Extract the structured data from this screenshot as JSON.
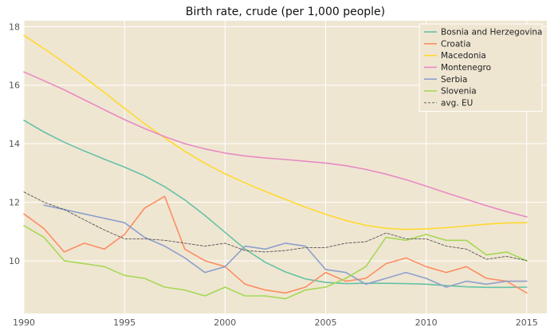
{
  "chart_data": {
    "type": "line",
    "title": "Birth rate, crude (per 1,000 people)",
    "xlabel": "",
    "ylabel": "",
    "xlim": [
      1990,
      2016
    ],
    "ylim": [
      8.2,
      18.2
    ],
    "x_ticks": [
      1990,
      1995,
      2000,
      2005,
      2010,
      2015
    ],
    "y_ticks": [
      10,
      12,
      14,
      16,
      18
    ],
    "grid": true,
    "legend_position": "top-right",
    "background": "#efe6d2",
    "series": [
      {
        "name": "Bosnia and Herzegovina",
        "color": "#66c2a5",
        "dash": "solid",
        "x": [
          1990,
          1991,
          1992,
          1993,
          1994,
          1995,
          1996,
          1997,
          1998,
          1999,
          2000,
          2001,
          2002,
          2003,
          2004,
          2005,
          2006,
          2007,
          2008,
          2009,
          2010,
          2011,
          2012,
          2013,
          2014,
          2015
        ],
        "y": [
          14.8,
          14.4,
          14.05,
          13.75,
          13.47,
          13.2,
          12.9,
          12.53,
          12.08,
          11.55,
          10.97,
          10.4,
          9.95,
          9.62,
          9.38,
          9.26,
          9.22,
          9.23,
          9.23,
          9.22,
          9.2,
          9.15,
          9.11,
          9.09,
          9.09,
          9.1
        ]
      },
      {
        "name": "Croatia",
        "color": "#fc8d62",
        "dash": "solid",
        "x": [
          1990,
          1991,
          1992,
          1993,
          1994,
          1995,
          1996,
          1997,
          1998,
          1999,
          2000,
          2001,
          2002,
          2003,
          2004,
          2005,
          2006,
          2007,
          2008,
          2009,
          2010,
          2011,
          2012,
          2013,
          2014,
          2015
        ],
        "y": [
          11.6,
          11.1,
          10.3,
          10.6,
          10.4,
          10.9,
          11.8,
          12.2,
          10.4,
          10.0,
          9.8,
          9.2,
          9.0,
          8.9,
          9.1,
          9.6,
          9.3,
          9.4,
          9.9,
          10.1,
          9.8,
          9.6,
          9.8,
          9.4,
          9.3,
          8.9
        ]
      },
      {
        "name": "Macedonia",
        "color": "#ffd92f",
        "dash": "solid",
        "x": [
          1990,
          1991,
          1992,
          1993,
          1994,
          1995,
          1996,
          1997,
          1998,
          1999,
          2000,
          2001,
          2002,
          2003,
          2004,
          2005,
          2006,
          2007,
          2008,
          2009,
          2010,
          2011,
          2012,
          2013,
          2014,
          2015
        ],
        "y": [
          17.7,
          17.25,
          16.77,
          16.27,
          15.75,
          15.21,
          14.68,
          14.2,
          13.74,
          13.33,
          12.97,
          12.66,
          12.37,
          12.1,
          11.83,
          11.59,
          11.38,
          11.21,
          11.11,
          11.07,
          11.09,
          11.13,
          11.19,
          11.25,
          11.29,
          11.3
        ]
      },
      {
        "name": "Montenegro",
        "color": "#e78ac3",
        "dash": "solid",
        "x": [
          1990,
          1991,
          1992,
          1993,
          1994,
          1995,
          1996,
          1997,
          1998,
          1999,
          2000,
          2001,
          2002,
          2003,
          2004,
          2005,
          2006,
          2007,
          2008,
          2009,
          2010,
          2011,
          2012,
          2013,
          2014,
          2015
        ],
        "y": [
          16.45,
          16.15,
          15.84,
          15.5,
          15.16,
          14.82,
          14.52,
          14.24,
          14.0,
          13.82,
          13.68,
          13.58,
          13.51,
          13.46,
          13.4,
          13.34,
          13.25,
          13.12,
          12.96,
          12.77,
          12.55,
          12.32,
          12.1,
          11.88,
          11.68,
          11.5
        ]
      },
      {
        "name": "Serbia",
        "color": "#8da0cb",
        "dash": "solid",
        "x": [
          1991,
          1992,
          1993,
          1994,
          1995,
          1996,
          1997,
          1998,
          1999,
          2000,
          2001,
          2002,
          2003,
          2004,
          2005,
          2006,
          2007,
          2008,
          2009,
          2010,
          2011,
          2012,
          2013,
          2014,
          2015
        ],
        "y": [
          11.9,
          11.75,
          11.6,
          11.45,
          11.3,
          10.8,
          10.5,
          10.1,
          9.6,
          9.8,
          10.5,
          10.4,
          10.6,
          10.5,
          9.7,
          9.6,
          9.2,
          9.4,
          9.6,
          9.4,
          9.1,
          9.3,
          9.2,
          9.3,
          9.3
        ]
      },
      {
        "name": "Slovenia",
        "color": "#a6d854",
        "dash": "solid",
        "x": [
          1990,
          1991,
          1992,
          1993,
          1994,
          1995,
          1996,
          1997,
          1998,
          1999,
          2000,
          2001,
          2002,
          2003,
          2004,
          2005,
          2006,
          2007,
          2008,
          2009,
          2010,
          2011,
          2012,
          2013,
          2014,
          2015
        ],
        "y": [
          11.2,
          10.8,
          10.0,
          9.9,
          9.8,
          9.5,
          9.4,
          9.1,
          9.0,
          8.8,
          9.1,
          8.8,
          8.8,
          8.7,
          9.0,
          9.1,
          9.4,
          9.8,
          10.8,
          10.7,
          10.9,
          10.7,
          10.7,
          10.2,
          10.3,
          10.0
        ]
      },
      {
        "name": "avg. EU",
        "color": "#555555",
        "dash": "dashed",
        "x": [
          1990,
          1991,
          1992,
          1993,
          1994,
          1995,
          1996,
          1997,
          1998,
          1999,
          2000,
          2001,
          2002,
          2003,
          2004,
          2005,
          2006,
          2007,
          2008,
          2009,
          2010,
          2011,
          2012,
          2013,
          2014,
          2015
        ],
        "y": [
          12.35,
          12.0,
          11.75,
          11.4,
          11.05,
          10.75,
          10.75,
          10.7,
          10.6,
          10.5,
          10.6,
          10.35,
          10.3,
          10.35,
          10.45,
          10.45,
          10.6,
          10.65,
          10.95,
          10.75,
          10.75,
          10.5,
          10.4,
          10.05,
          10.15,
          10.0
        ]
      }
    ]
  }
}
